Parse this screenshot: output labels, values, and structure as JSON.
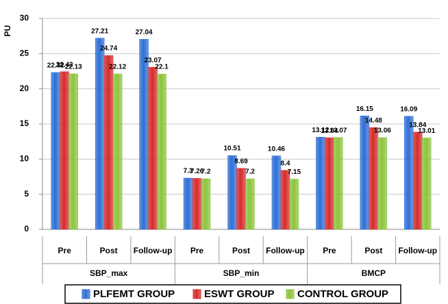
{
  "chart_data": {
    "type": "bar",
    "y_label": "PU",
    "categories": [
      "Pre",
      "Post",
      "Follow-up",
      "Pre",
      "Post",
      "Follow-up",
      "Pre",
      "Post",
      "Follow-up"
    ],
    "groups": [
      "SBP_max",
      "SBP_min",
      "BMCP"
    ],
    "series": [
      {
        "name": "PLFEMT GROUP",
        "color": "#2f6fd6",
        "values": [
          22.32,
          27.21,
          27.04,
          7.3,
          10.51,
          10.46,
          13.12,
          16.15,
          16.09
        ]
      },
      {
        "name": "ESWT GROUP",
        "color": "#d62b2b",
        "values": [
          22.43,
          24.74,
          23.07,
          7.26,
          8.69,
          8.4,
          13.04,
          14.48,
          13.84
        ]
      },
      {
        "name": "CONTROL GROUP",
        "color": "#8cc43c",
        "values": [
          22.13,
          22.12,
          22.1,
          7.2,
          7.2,
          7.15,
          13.07,
          13.06,
          13.01
        ]
      }
    ],
    "ylim": [
      0,
      30
    ],
    "yticks": [
      0,
      5,
      10,
      15,
      20,
      25,
      30
    ],
    "grid": true,
    "legend": "bottom"
  }
}
